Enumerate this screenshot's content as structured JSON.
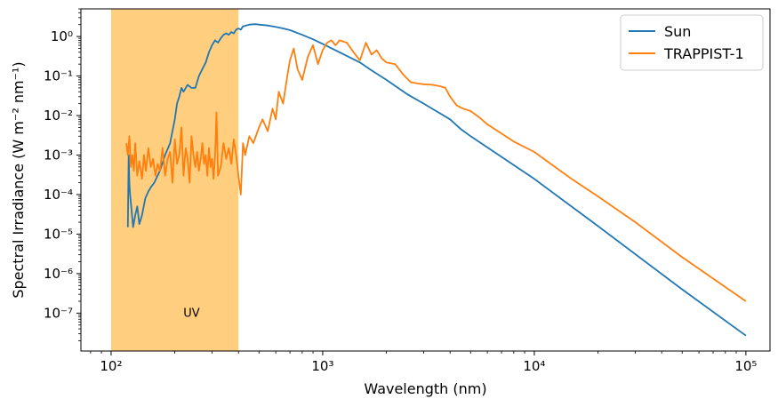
{
  "chart_data": {
    "type": "line",
    "title": "",
    "xlabel": "Wavelength (nm)",
    "ylabel": "Spectral Irradiance (W m⁻² nm⁻¹)",
    "xscale": "log",
    "yscale": "log",
    "xlim": [
      72,
      130000
    ],
    "ylim": [
      1.1e-08,
      5
    ],
    "x_ticks": [
      {
        "value": 100,
        "label": "10²"
      },
      {
        "value": 1000,
        "label": "10³"
      },
      {
        "value": 10000,
        "label": "10⁴"
      },
      {
        "value": 100000,
        "label": "10⁵"
      }
    ],
    "y_ticks": [
      {
        "value": 1,
        "label": "10⁰"
      },
      {
        "value": 0.1,
        "label": "10⁻¹"
      },
      {
        "value": 0.01,
        "label": "10⁻²"
      },
      {
        "value": 0.001,
        "label": "10⁻³"
      },
      {
        "value": 0.0001,
        "label": "10⁻⁴"
      },
      {
        "value": 1e-05,
        "label": "10⁻⁵"
      },
      {
        "value": 1e-06,
        "label": "10⁻⁶"
      },
      {
        "value": 1e-07,
        "label": "10⁻⁷"
      }
    ],
    "shaded_region": {
      "x": [
        100,
        400
      ],
      "label": "UV",
      "color": "#ffce7e",
      "label_x": 240,
      "label_y": 1e-07
    },
    "legend": {
      "placement": "top-right",
      "entries": [
        "Sun",
        "TRAPPIST-1"
      ]
    },
    "series": [
      {
        "name": "Sun",
        "color": "#1f77b4",
        "x": [
          120,
          121,
          122,
          123,
          125,
          127,
          130,
          133,
          136,
          140,
          145,
          150,
          155,
          160,
          170,
          180,
          190,
          200,
          205,
          210,
          215,
          220,
          230,
          240,
          250,
          260,
          270,
          280,
          290,
          300,
          310,
          320,
          330,
          340,
          350,
          360,
          370,
          380,
          390,
          400,
          410,
          420,
          450,
          480,
          500,
          550,
          600,
          650,
          700,
          800,
          900,
          1000,
          1200,
          1500,
          1700,
          2000,
          2500,
          3000,
          4000,
          4500,
          5000,
          7000,
          10000,
          20000,
          50000,
          100000
        ],
        "y": [
          1.5e-05,
          0.001,
          0.0002,
          0.0001,
          4e-05,
          1.5e-05,
          3e-05,
          5e-05,
          1.8e-05,
          3e-05,
          8e-05,
          0.00012,
          0.00016,
          0.0002,
          0.0004,
          0.001,
          0.002,
          0.008,
          0.02,
          0.03,
          0.05,
          0.04,
          0.06,
          0.05,
          0.05,
          0.1,
          0.15,
          0.22,
          0.4,
          0.6,
          0.8,
          0.7,
          0.9,
          1.1,
          1.2,
          1.1,
          1.3,
          1.2,
          1.5,
          1.6,
          1.5,
          1.8,
          2.0,
          2.05,
          2.0,
          1.9,
          1.75,
          1.6,
          1.45,
          1.1,
          0.85,
          0.65,
          0.4,
          0.22,
          0.14,
          0.08,
          0.035,
          0.02,
          0.008,
          0.0045,
          0.003,
          0.0009,
          0.00025,
          1.6e-05,
          4e-07,
          2.7e-08
        ]
      },
      {
        "name": "TRAPPIST-1",
        "color": "#ff7f0e",
        "x": [
          118,
          120,
          122,
          124,
          126,
          128,
          130,
          133,
          136,
          140,
          143,
          146,
          150,
          154,
          158,
          162,
          166,
          170,
          175,
          180,
          185,
          190,
          195,
          200,
          205,
          210,
          215,
          220,
          225,
          230,
          235,
          240,
          245,
          250,
          255,
          260,
          265,
          270,
          275,
          280,
          285,
          290,
          295,
          300,
          305,
          310,
          315,
          320,
          330,
          340,
          350,
          360,
          370,
          380,
          390,
          400,
          410,
          420,
          430,
          450,
          470,
          500,
          520,
          550,
          580,
          600,
          620,
          650,
          680,
          700,
          730,
          760,
          800,
          850,
          900,
          950,
          1000,
          1050,
          1100,
          1150,
          1200,
          1300,
          1400,
          1500,
          1600,
          1700,
          1800,
          1900,
          2000,
          2200,
          2400,
          2600,
          2800,
          3000,
          3300,
          3600,
          3800,
          4000,
          4300,
          4600,
          5000,
          5500,
          6000,
          7000,
          8000,
          10000,
          15000,
          20000,
          30000,
          50000,
          70000,
          100000
        ],
        "y": [
          0.002,
          0.001,
          0.003,
          0.0005,
          0.001,
          0.0004,
          0.002,
          0.0003,
          0.0007,
          0.00025,
          0.001,
          0.0004,
          0.0015,
          0.0005,
          0.0008,
          0.0003,
          0.0006,
          0.0004,
          0.0015,
          0.0003,
          0.0008,
          0.0012,
          0.0002,
          0.0025,
          0.0006,
          0.001,
          0.005,
          0.0003,
          0.0015,
          0.0008,
          0.0002,
          0.003,
          0.001,
          0.0005,
          0.0012,
          0.0004,
          0.0008,
          0.002,
          0.0006,
          0.001,
          0.0003,
          0.0015,
          0.0005,
          0.0008,
          0.00025,
          0.001,
          0.012,
          0.0003,
          0.0005,
          0.002,
          0.0008,
          0.0015,
          0.0006,
          0.0025,
          0.001,
          0.0003,
          0.0001,
          0.002,
          0.001,
          0.003,
          0.002,
          0.005,
          0.008,
          0.004,
          0.015,
          0.008,
          0.04,
          0.02,
          0.1,
          0.25,
          0.5,
          0.15,
          0.08,
          0.3,
          0.6,
          0.2,
          0.45,
          0.7,
          0.8,
          0.6,
          0.8,
          0.7,
          0.4,
          0.25,
          0.7,
          0.35,
          0.45,
          0.28,
          0.22,
          0.2,
          0.11,
          0.07,
          0.065,
          0.062,
          0.06,
          0.055,
          0.05,
          0.03,
          0.018,
          0.015,
          0.013,
          0.009,
          0.006,
          0.0035,
          0.0022,
          0.0012,
          0.00025,
          9e-05,
          2e-05,
          2.6e-06,
          7.5e-07,
          2e-07
        ]
      }
    ]
  }
}
